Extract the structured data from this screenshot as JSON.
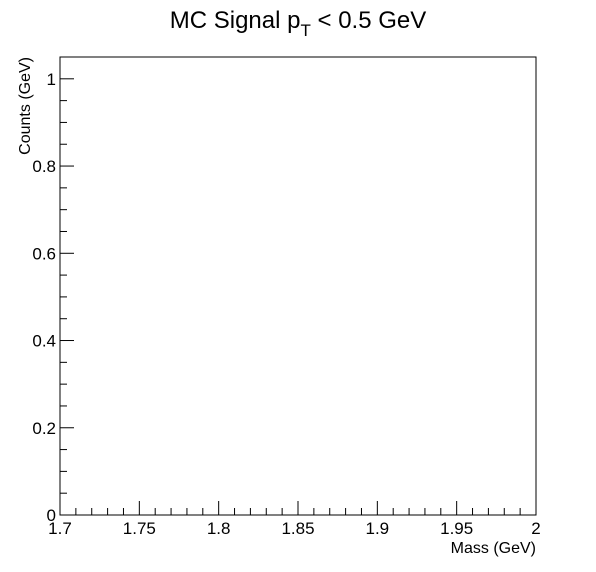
{
  "chart_data": {
    "type": "line",
    "title": "MC Signal p",
    "title_subscript": "T",
    "title_suffix": " < 0.5 GeV",
    "xlabel": "Mass (GeV)",
    "ylabel": "Counts (GeV)",
    "xlim": [
      1.7,
      2.0
    ],
    "ylim": [
      0,
      1.05
    ],
    "x_ticks": [
      "1.7",
      "1.75",
      "1.8",
      "1.85",
      "1.9",
      "1.95",
      "2"
    ],
    "y_ticks": [
      "0",
      "0.2",
      "0.4",
      "0.6",
      "0.8",
      "1"
    ],
    "series": [],
    "grid": false,
    "legend": "none"
  }
}
